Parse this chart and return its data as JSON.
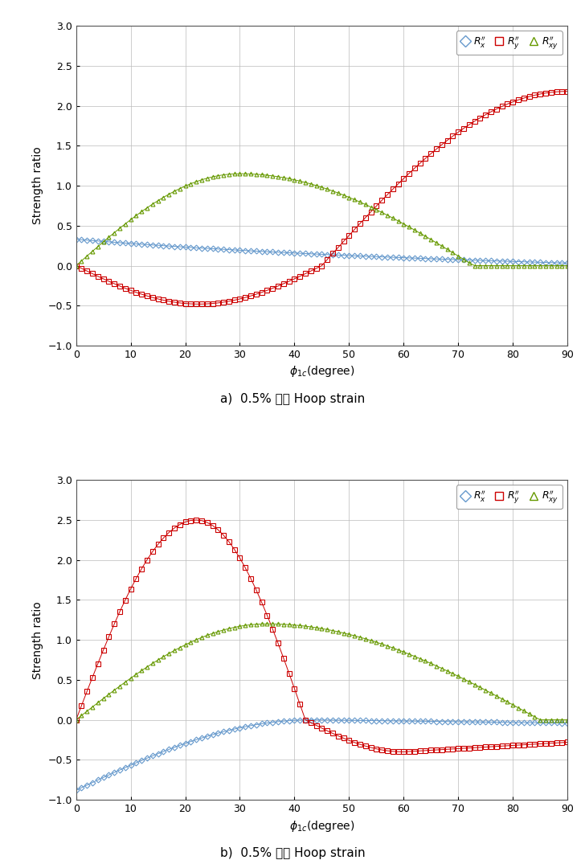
{
  "fig_width": 7.28,
  "fig_height": 10.7,
  "dpi": 100,
  "background_color": "#ffffff",
  "subplot_a": {
    "caption": "a)  0.5% 인장 Hoop strain",
    "ylabel": "Strength ratio",
    "xlabel": "$\\phi_{1c}$(degree)",
    "xlim": [
      0,
      90
    ],
    "ylim": [
      -1,
      3
    ],
    "yticks": [
      -1,
      -0.5,
      0,
      0.5,
      1,
      1.5,
      2,
      2.5,
      3
    ],
    "xticks": [
      0,
      10,
      20,
      30,
      40,
      50,
      60,
      70,
      80,
      90
    ],
    "Rx_color": "#6699CC",
    "Ry_color": "#CC0000",
    "Rxy_color": "#669900"
  },
  "subplot_b": {
    "caption": "b)  0.5% 압축 Hoop strain",
    "ylabel": "Strength ratio",
    "xlabel": "$\\phi_{1c}$(degree)",
    "xlim": [
      0,
      90
    ],
    "ylim": [
      -1,
      3
    ],
    "yticks": [
      -1,
      -0.5,
      0,
      0.5,
      1,
      1.5,
      2,
      2.5,
      3
    ],
    "xticks": [
      0,
      10,
      20,
      30,
      40,
      50,
      60,
      70,
      80,
      90
    ],
    "Rx_color": "#6699CC",
    "Ry_color": "#CC0000",
    "Rxy_color": "#669900"
  },
  "legend": {
    "Rx_label": "$R^{\\prime\\prime}_x$",
    "Ry_label": "$R^{\\prime\\prime}_y$",
    "Rxy_label": "$R^{\\prime\\prime}_{xy}$"
  }
}
